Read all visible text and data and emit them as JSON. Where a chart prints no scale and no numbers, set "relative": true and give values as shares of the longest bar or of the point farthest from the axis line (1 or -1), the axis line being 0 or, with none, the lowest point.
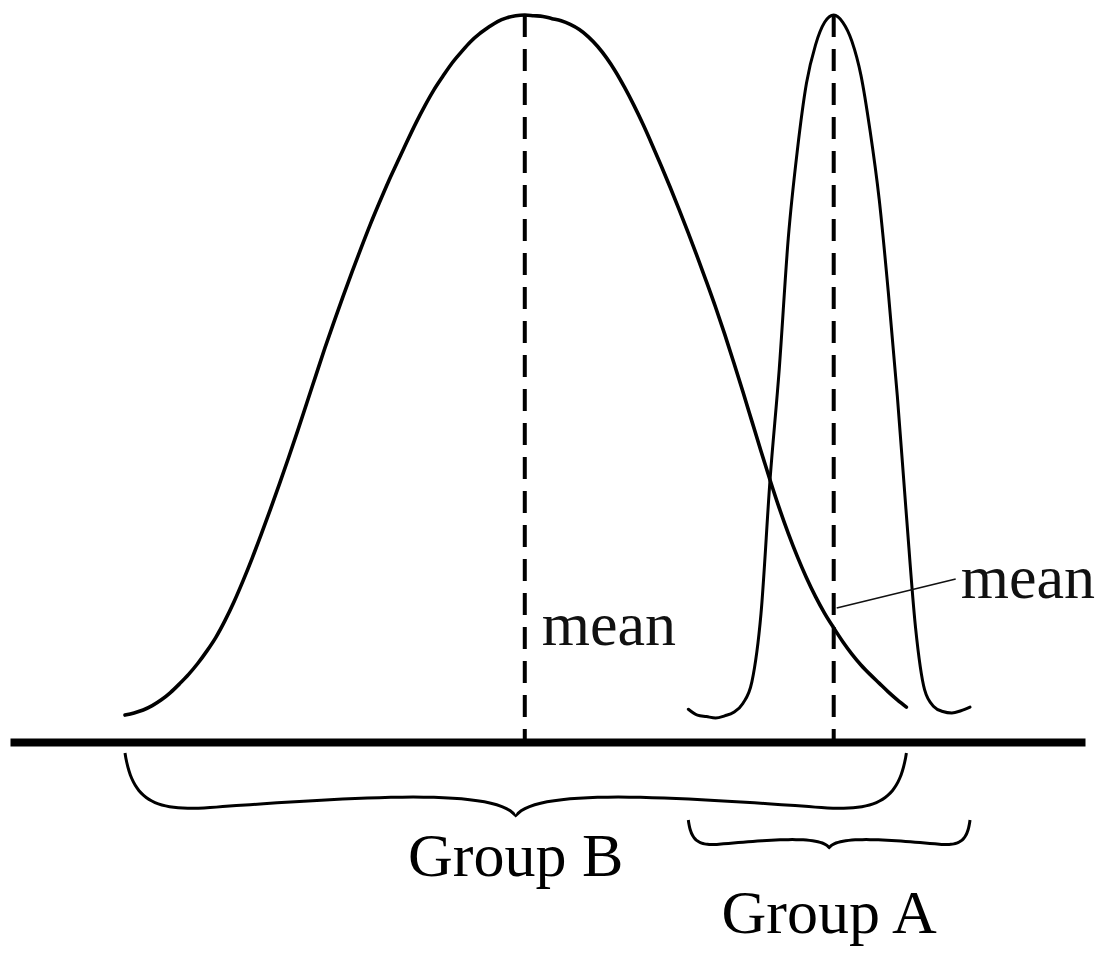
{
  "chart_data": {
    "type": "line",
    "relative": true,
    "categories": [
      null,
      null,
      null,
      null,
      null,
      null,
      null,
      null,
      null,
      null,
      null,
      null,
      null,
      null,
      null,
      null,
      null,
      null,
      null,
      null,
      null,
      null,
      null,
      null,
      null,
      null,
      null,
      null,
      null,
      null,
      null,
      null,
      null,
      null,
      null,
      null,
      null,
      null,
      null,
      null,
      null,
      null,
      null,
      null,
      null,
      null,
      null,
      null,
      null,
      null,
      null,
      null,
      null,
      null,
      null,
      null,
      null,
      null,
      null,
      null,
      null,
      null,
      null,
      null,
      null,
      null,
      null,
      null,
      null,
      null,
      null,
      null,
      null,
      null,
      null,
      null,
      null,
      null,
      null,
      null,
      null,
      null,
      null,
      null,
      null,
      null,
      null,
      null,
      null,
      null,
      null,
      null,
      null,
      null
    ],
    "series": [
      {
        "name": "Group B",
        "color": "#000000",
        "values": [
          0.037,
          0.04,
          0.044,
          0.05,
          0.058,
          0.068,
          0.08,
          0.093,
          0.108,
          0.125,
          0.144,
          0.167,
          0.193,
          0.222,
          0.253,
          0.286,
          0.32,
          0.355,
          0.391,
          0.428,
          0.466,
          0.504,
          0.542,
          0.578,
          0.613,
          0.647,
          0.68,
          0.712,
          0.742,
          0.771,
          0.798,
          0.825,
          0.851,
          0.875,
          0.897,
          0.916,
          0.934,
          0.949,
          0.963,
          0.974,
          0.983,
          0.991,
          0.996,
          0.999,
          1.0,
          0.999,
          0.998,
          0.995,
          0.992,
          0.987,
          0.98,
          0.97,
          0.957,
          0.941,
          0.922,
          0.9,
          0.876,
          0.85,
          0.822,
          0.793,
          0.763,
          0.732,
          0.7,
          0.667,
          0.633,
          0.598,
          0.561,
          0.522,
          0.482,
          0.441,
          0.4,
          0.36,
          0.322,
          0.287,
          0.255,
          0.226,
          0.2,
          0.177,
          0.157,
          0.138,
          0.121,
          0.106,
          0.093,
          0.081,
          0.069,
          0.058,
          0.048,
          null,
          null,
          null,
          null,
          null,
          null,
          null
        ]
      },
      {
        "name": "Group A",
        "color": "#000000",
        "values": [
          null,
          null,
          null,
          null,
          null,
          null,
          null,
          null,
          null,
          null,
          null,
          null,
          null,
          null,
          null,
          null,
          null,
          null,
          null,
          null,
          null,
          null,
          null,
          null,
          null,
          null,
          null,
          null,
          null,
          null,
          null,
          null,
          null,
          null,
          null,
          null,
          null,
          null,
          null,
          null,
          null,
          null,
          null,
          null,
          null,
          null,
          null,
          null,
          null,
          null,
          null,
          null,
          null,
          null,
          null,
          null,
          null,
          null,
          null,
          null,
          null,
          null,
          0.045,
          0.037,
          0.035,
          0.033,
          0.036,
          0.041,
          0.053,
          0.083,
          0.177,
          0.362,
          0.512,
          0.693,
          0.814,
          0.906,
          0.959,
          0.99,
          1.0,
          0.99,
          0.964,
          0.917,
          0.841,
          0.747,
          0.62,
          0.476,
          0.312,
          0.158,
          0.072,
          0.049,
          0.042,
          0.04,
          0.043,
          0.048
        ]
      }
    ],
    "annotations": [
      "mean",
      "mean"
    ]
  }
}
